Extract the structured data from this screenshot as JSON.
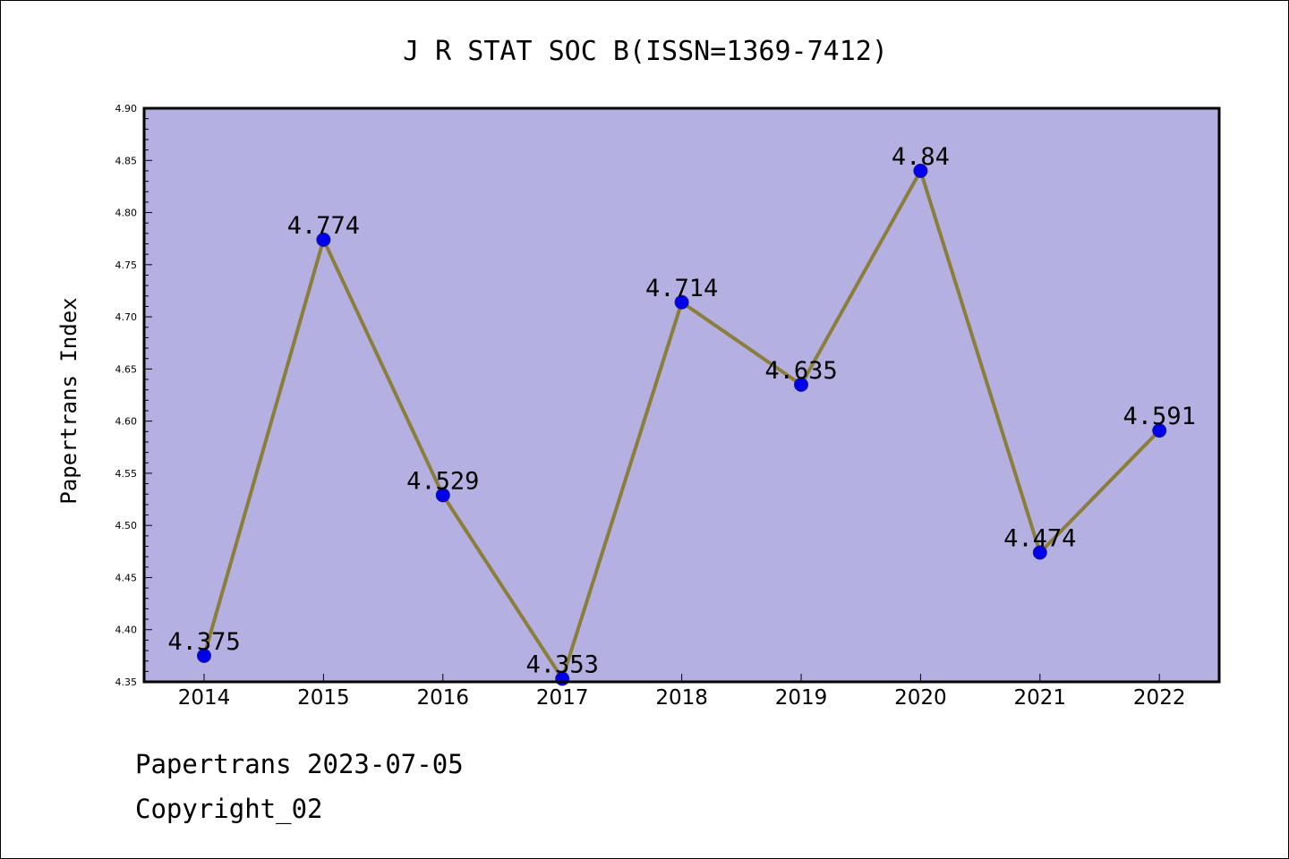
{
  "footer": {
    "line1": "Papertrans 2023-07-05",
    "line2": "Copyright_02"
  },
  "chart_data": {
    "type": "line",
    "title": "J R STAT SOC B(ISSN=1369-7412)",
    "xlabel": "",
    "ylabel": "Papertrans Index",
    "categories": [
      "2014",
      "2015",
      "2016",
      "2017",
      "2018",
      "2019",
      "2020",
      "2021",
      "2022"
    ],
    "series": [
      {
        "values": [
          4.375,
          4.774,
          4.529,
          4.353,
          4.714,
          4.635,
          4.84,
          4.474,
          4.591
        ]
      }
    ],
    "data_labels": [
      "4.375",
      "4.774",
      "4.529",
      "4.353",
      "4.714",
      "4.635",
      "4.84",
      "4.474",
      "4.591"
    ],
    "ylim": [
      4.35,
      4.9
    ],
    "y_ticks": [
      "4.35",
      "4.40",
      "4.45",
      "4.50",
      "4.55",
      "4.60",
      "4.65",
      "4.70",
      "4.75",
      "4.80",
      "4.85",
      "4.90"
    ],
    "grid": false,
    "legend": "none",
    "colors": {
      "plot_background": "#b5b0e2",
      "line": "#8b7d3a",
      "marker_fill": "#0000ee",
      "marker_edge": "#1a1a8a",
      "axis": "#000000"
    }
  }
}
